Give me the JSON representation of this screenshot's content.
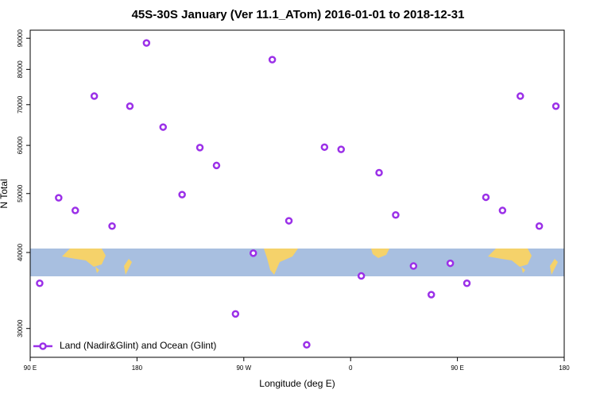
{
  "chart_data": {
    "type": "scatter",
    "title": "45S-30S January (Ver 11.1_ATom)   2016-01-01 to 2018-12-31",
    "x_label": "Longitude (deg E)",
    "y_label": "N Total",
    "xlim": [
      90,
      540
    ],
    "xticks": [
      {
        "value": 90,
        "label": "90 E"
      },
      180,
      {
        "value": 270,
        "label": "90 W"
      },
      {
        "value": 360,
        "label": "0"
      },
      {
        "value": 450,
        "label": "90 E"
      },
      {
        "value": 540,
        "label": "180"
      }
    ],
    "ylim": [
      26900,
      92800
    ],
    "ylog": true,
    "yticks": [
      30000,
      40000,
      50000,
      60000,
      70000,
      80000,
      90000
    ],
    "legend": "bottom-left",
    "series": [
      {
        "name": "Land (Nadir&Glint) and Ocean (Glint)",
        "color": "#9b30e8",
        "x": [
          98,
          114,
          128,
          144,
          159,
          174,
          188,
          202,
          218,
          233,
          247,
          263,
          278,
          294,
          308,
          323,
          338,
          352,
          369,
          384,
          398,
          413,
          428,
          444,
          458,
          474,
          488,
          503,
          519,
          533
        ],
        "values": [
          35600,
          49200,
          46900,
          72300,
          44200,
          69600,
          88400,
          64300,
          49800,
          59500,
          55600,
          31700,
          39900,
          83000,
          45100,
          28200,
          59600,
          59100,
          36600,
          54100,
          46100,
          38000,
          34100,
          38400,
          35600,
          49300,
          46900,
          72300,
          44200,
          69600
        ]
      }
    ]
  }
}
